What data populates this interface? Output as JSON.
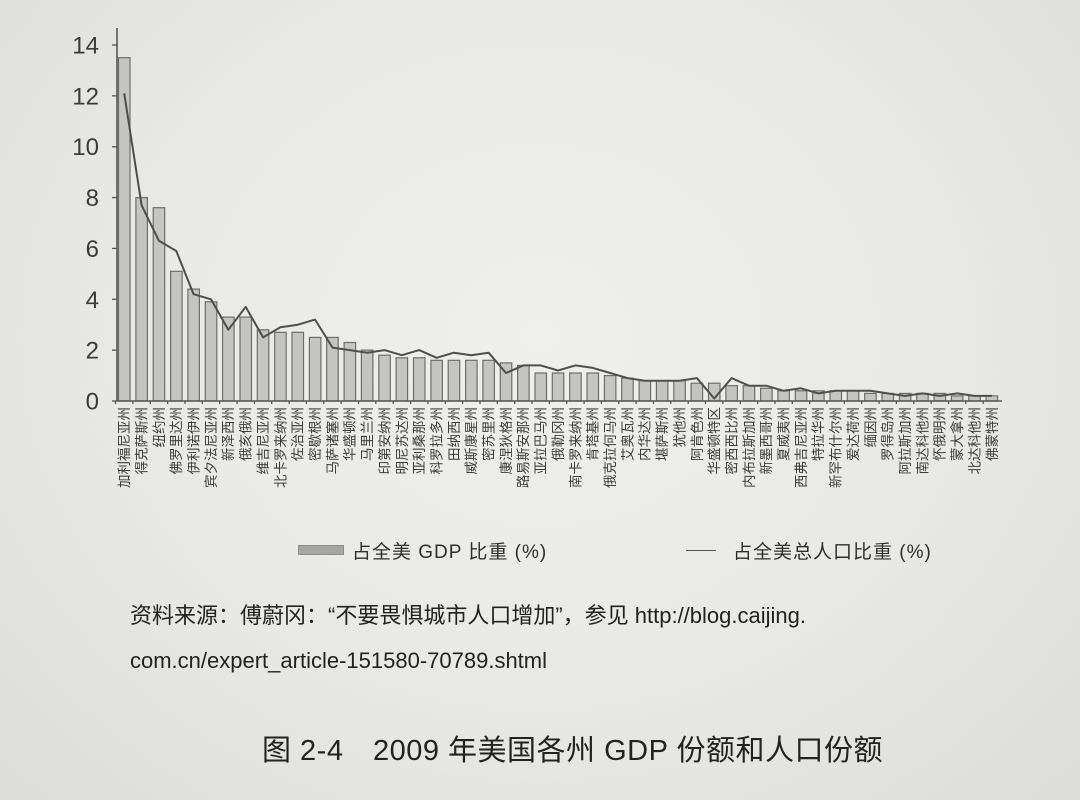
{
  "legend": {
    "gdp_label": "占全美 GDP 比重 (%)",
    "population_label": "占全美总人口比重 (%)"
  },
  "source": {
    "line1": "资料来源：傅蔚冈：“不要畏惧城市人口增加”，参见 http://blog.caijing.",
    "line2": "com.cn/expert_article-151580-70789.shtml"
  },
  "figure": {
    "caption": "图 2-4　2009 年美国各州 GDP 份额和人口份额"
  },
  "colors": {
    "bar_fill": "#c4c4c1",
    "bar_stroke": "#6d6d6b",
    "line": "#4e4e4c",
    "background": "#e8e8e5"
  },
  "chart_data": {
    "type": "bar",
    "title": "2009 年美国各州 GDP 份额和人口份额",
    "xlabel": "",
    "ylabel": "",
    "ylim": [
      0,
      14
    ],
    "yticks": [
      0,
      2,
      4,
      6,
      8,
      10,
      12,
      14
    ],
    "grid": false,
    "legend_position": "bottom",
    "categories": [
      "加利福尼亚州",
      "得克萨斯州",
      "纽约州",
      "佛罗里达州",
      "伊利诺伊州",
      "宾夕法尼亚州",
      "新泽西州",
      "俄亥俄州",
      "维吉尼亚州",
      "北卡罗来纳州",
      "佐治亚州",
      "密歇根州",
      "马萨诸塞州",
      "华盛顿州",
      "马里兰州",
      "印第安纳州",
      "明尼苏达州",
      "亚利桑那州",
      "科罗拉多州",
      "田纳西州",
      "威斯康星州",
      "密苏里州",
      "康涅狄格州",
      "路易斯安那州",
      "亚拉巴马州",
      "俄勒冈州",
      "南卡罗来纳州",
      "肯塔基州",
      "俄克拉何马州",
      "艾奥瓦州",
      "内华达州",
      "堪萨斯州",
      "犹他州",
      "阿肯色州",
      "华盛顿特区",
      "密西西比州",
      "内布拉斯加州",
      "新墨西哥州",
      "夏威夷州",
      "西弗吉尼亚州",
      "特拉华州",
      "新罕布什尔州",
      "爱达荷州",
      "缅因州",
      "罗得岛州",
      "阿拉斯加州",
      "南达科他州",
      "怀俄明州",
      "蒙大拿州",
      "北达科他州",
      "佛蒙特州"
    ],
    "series": [
      {
        "name": "占全美 GDP 比重 (%)",
        "kind": "bar",
        "values": [
          13.5,
          8.0,
          7.6,
          5.1,
          4.4,
          3.9,
          3.3,
          3.3,
          2.8,
          2.7,
          2.7,
          2.5,
          2.5,
          2.3,
          2.0,
          1.8,
          1.7,
          1.7,
          1.6,
          1.6,
          1.6,
          1.6,
          1.5,
          1.4,
          1.1,
          1.1,
          1.1,
          1.1,
          1.0,
          0.9,
          0.8,
          0.8,
          0.8,
          0.7,
          0.7,
          0.6,
          0.6,
          0.5,
          0.4,
          0.4,
          0.4,
          0.4,
          0.4,
          0.3,
          0.3,
          0.3,
          0.3,
          0.3,
          0.2,
          0.2,
          0.2
        ]
      },
      {
        "name": "占全美总人口比重 (%)",
        "kind": "line",
        "values": [
          12.1,
          7.7,
          6.3,
          5.9,
          4.2,
          4.0,
          2.8,
          3.7,
          2.5,
          2.9,
          3.0,
          3.2,
          2.1,
          2.0,
          1.9,
          2.0,
          1.8,
          2.0,
          1.7,
          1.9,
          1.8,
          1.9,
          1.1,
          1.4,
          1.4,
          1.2,
          1.4,
          1.3,
          1.1,
          0.9,
          0.8,
          0.8,
          0.8,
          0.9,
          0.1,
          0.9,
          0.6,
          0.6,
          0.4,
          0.5,
          0.3,
          0.4,
          0.4,
          0.4,
          0.3,
          0.2,
          0.3,
          0.2,
          0.3,
          0.2,
          0.2
        ]
      }
    ]
  }
}
